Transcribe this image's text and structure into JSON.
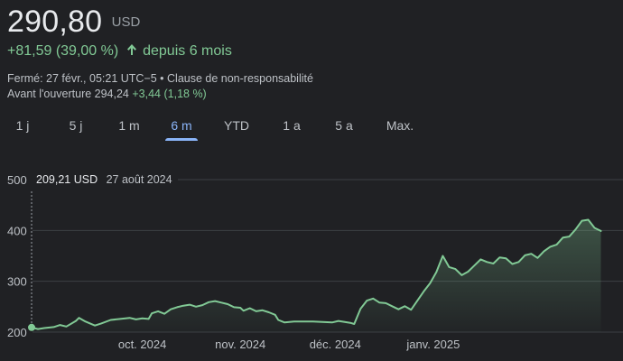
{
  "quote": {
    "price": "290,80",
    "currency": "USD",
    "change": "+81,59 (39,00 %)",
    "period": "depuis 6 mois",
    "closed_info": "Fermé: 27 févr., 05:21 UTC−5 • Clause de non-responsabilité",
    "premarket_label": "Avant l'ouverture 294,24",
    "premarket_change": "+3,44 (1,18 %)"
  },
  "tabs": [
    {
      "label": "1 j"
    },
    {
      "label": "5 j"
    },
    {
      "label": "1 m"
    },
    {
      "label": "6 m",
      "active": true
    },
    {
      "label": "YTD"
    },
    {
      "label": "1 a"
    },
    {
      "label": "5 a"
    },
    {
      "label": "Max."
    }
  ],
  "tooltip": {
    "value": "209,21 USD",
    "date": "27 août 2024"
  },
  "colors": {
    "line": "#81c995",
    "accent": "#8ab4f8",
    "background": "#202124"
  },
  "chart_data": {
    "type": "area",
    "ylim": [
      200,
      500
    ],
    "yticks": [
      {
        "v": 200,
        "label": "200"
      },
      {
        "v": 300,
        "label": "300"
      },
      {
        "v": 400,
        "label": "400"
      },
      {
        "v": 500,
        "label": "500"
      }
    ],
    "xlim": [
      "2024-08-27",
      "2025-02-26"
    ],
    "xticks": [
      {
        "date": "2024-10-01",
        "label": "oct. 2024"
      },
      {
        "date": "2024-11-01",
        "label": "nov. 2024"
      },
      {
        "date": "2024-12-01",
        "label": "déc. 2024"
      },
      {
        "date": "2025-01-01",
        "label": "janv. 2025"
      }
    ],
    "grid": true,
    "series": [
      {
        "points": [
          [
            "2024-08-27",
            209.21
          ],
          [
            "2024-08-29",
            206
          ],
          [
            "2024-08-31",
            208
          ],
          [
            "2024-09-03",
            210
          ],
          [
            "2024-09-05",
            214
          ],
          [
            "2024-09-07",
            211
          ],
          [
            "2024-09-10",
            222
          ],
          [
            "2024-09-11",
            228
          ],
          [
            "2024-09-13",
            221
          ],
          [
            "2024-09-16",
            213
          ],
          [
            "2024-09-18",
            217
          ],
          [
            "2024-09-21",
            224
          ],
          [
            "2024-09-24",
            226
          ],
          [
            "2024-09-27",
            228
          ],
          [
            "2024-09-29",
            225
          ],
          [
            "2024-10-01",
            227
          ],
          [
            "2024-10-03",
            226
          ],
          [
            "2024-10-04",
            237
          ],
          [
            "2024-10-06",
            241
          ],
          [
            "2024-10-08",
            236
          ],
          [
            "2024-10-10",
            245
          ],
          [
            "2024-10-12",
            249
          ],
          [
            "2024-10-14",
            252
          ],
          [
            "2024-10-16",
            254
          ],
          [
            "2024-10-18",
            250
          ],
          [
            "2024-10-20",
            253
          ],
          [
            "2024-10-22",
            259
          ],
          [
            "2024-10-24",
            261
          ],
          [
            "2024-10-26",
            258
          ],
          [
            "2024-10-28",
            255
          ],
          [
            "2024-10-30",
            249
          ],
          [
            "2024-11-01",
            248
          ],
          [
            "2024-11-02",
            242
          ],
          [
            "2024-11-04",
            247
          ],
          [
            "2024-11-06",
            241
          ],
          [
            "2024-11-08",
            243
          ],
          [
            "2024-11-10",
            239
          ],
          [
            "2024-11-12",
            234
          ],
          [
            "2024-11-13",
            224
          ],
          [
            "2024-11-15",
            219
          ],
          [
            "2024-11-18",
            221
          ],
          [
            "2024-11-21",
            221
          ],
          [
            "2024-11-24",
            221
          ],
          [
            "2024-11-27",
            220
          ],
          [
            "2024-11-30",
            219
          ],
          [
            "2024-12-02",
            222
          ],
          [
            "2024-12-04",
            220
          ],
          [
            "2024-12-06",
            218
          ],
          [
            "2024-12-07",
            216
          ],
          [
            "2024-12-09",
            246
          ],
          [
            "2024-12-11",
            262
          ],
          [
            "2024-12-13",
            266
          ],
          [
            "2024-12-15",
            258
          ],
          [
            "2024-12-17",
            257
          ],
          [
            "2024-12-19",
            251
          ],
          [
            "2024-12-21",
            245
          ],
          [
            "2024-12-23",
            251
          ],
          [
            "2024-12-25",
            244
          ],
          [
            "2024-12-27",
            262
          ],
          [
            "2024-12-29",
            280
          ],
          [
            "2024-12-31",
            296
          ],
          [
            "2025-01-02",
            318
          ],
          [
            "2025-01-04",
            350
          ],
          [
            "2025-01-06",
            328
          ],
          [
            "2025-01-08",
            324
          ],
          [
            "2025-01-10",
            312
          ],
          [
            "2025-01-12",
            319
          ],
          [
            "2025-01-14",
            331
          ],
          [
            "2025-01-16",
            343
          ],
          [
            "2025-01-18",
            338
          ],
          [
            "2025-01-20",
            335
          ],
          [
            "2025-01-22",
            347
          ],
          [
            "2025-01-24",
            345
          ],
          [
            "2025-01-26",
            334
          ],
          [
            "2025-01-28",
            338
          ],
          [
            "2025-01-30",
            351
          ],
          [
            "2025-02-01",
            354
          ],
          [
            "2025-02-03",
            346
          ],
          [
            "2025-02-05",
            359
          ],
          [
            "2025-02-07",
            368
          ],
          [
            "2025-02-09",
            372
          ],
          [
            "2025-02-11",
            386
          ],
          [
            "2025-02-13",
            388
          ],
          [
            "2025-02-15",
            402
          ],
          [
            "2025-02-17",
            419
          ],
          [
            "2025-02-19",
            421
          ],
          [
            "2025-02-21",
            405
          ],
          [
            "2025-02-23",
            399
          ]
        ]
      }
    ]
  }
}
